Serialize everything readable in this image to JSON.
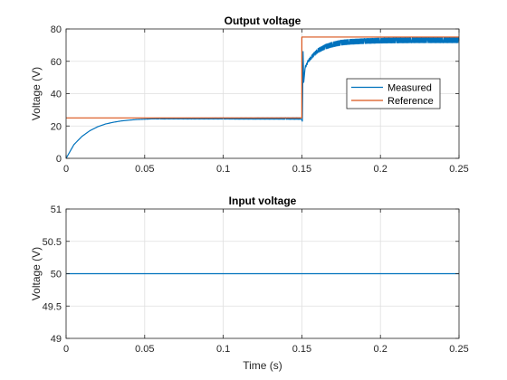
{
  "chart_data": [
    {
      "type": "line",
      "title": "Output voltage",
      "xlabel": "",
      "ylabel": "Voltage (V)",
      "xlim": [
        0,
        0.25
      ],
      "ylim": [
        0,
        80
      ],
      "xticks": [
        0,
        0.05,
        0.1,
        0.15,
        0.2,
        0.25
      ],
      "xtick_labels": [
        "0",
        "0.05",
        "0.1",
        "0.15",
        "0.2",
        "0.25"
      ],
      "yticks": [
        0,
        20,
        40,
        60,
        80
      ],
      "ytick_labels": [
        "0",
        "20",
        "40",
        "60",
        "80"
      ],
      "grid": true,
      "legend": "right",
      "series": [
        {
          "name": "Measured",
          "color": "#0072BD",
          "x": [
            0,
            0.005,
            0.01,
            0.015,
            0.02,
            0.025,
            0.03,
            0.035,
            0.04,
            0.045,
            0.05,
            0.055,
            0.06,
            0.08,
            0.1,
            0.12,
            0.14,
            0.1495,
            0.1503,
            0.1508,
            0.1512,
            0.152,
            0.154,
            0.156,
            0.158,
            0.16,
            0.165,
            0.17,
            0.175,
            0.18,
            0.19,
            0.2,
            0.21,
            0.22,
            0.23,
            0.24,
            0.25
          ],
          "y": [
            0,
            8.5,
            13.5,
            17,
            19.5,
            21.2,
            22.3,
            23.1,
            23.6,
            24,
            24.2,
            24.4,
            24.5,
            24.6,
            24.6,
            24.6,
            24.6,
            24.6,
            23,
            66,
            47,
            56,
            60,
            62.5,
            64.5,
            66.5,
            69,
            70.5,
            71.5,
            72,
            72.5,
            72.8,
            72.9,
            73,
            73,
            73,
            73
          ],
          "ripple": [
            0,
            0,
            0,
            0,
            0,
            0,
            0,
            0,
            0,
            0,
            0,
            0,
            0.4,
            0.6,
            0.7,
            0.8,
            0.9,
            1,
            0,
            0,
            0,
            1.5,
            1.5,
            2,
            2.2,
            2.5,
            2.8,
            3,
            3,
            3,
            3,
            3,
            3,
            3,
            3,
            3,
            3
          ]
        },
        {
          "name": "Reference",
          "color": "#D95319",
          "x": [
            0,
            0.15,
            0.15,
            0.25
          ],
          "y": [
            25,
            25,
            75,
            75
          ]
        }
      ]
    },
    {
      "type": "line",
      "title": "Input voltage",
      "xlabel": "Time (s)",
      "ylabel": "Voltage (V)",
      "xlim": [
        0,
        0.25
      ],
      "ylim": [
        49,
        51
      ],
      "xticks": [
        0,
        0.05,
        0.1,
        0.15,
        0.2,
        0.25
      ],
      "xtick_labels": [
        "0",
        "0.05",
        "0.1",
        "0.15",
        "0.2",
        "0.25"
      ],
      "yticks": [
        49,
        49.5,
        50,
        50.5,
        51
      ],
      "ytick_labels": [
        "49",
        "49.5",
        "50",
        "50.5",
        "51"
      ],
      "grid": true,
      "series": [
        {
          "color": "#0072BD",
          "x": [
            0,
            0.25
          ],
          "y": [
            50,
            50
          ]
        }
      ]
    }
  ]
}
